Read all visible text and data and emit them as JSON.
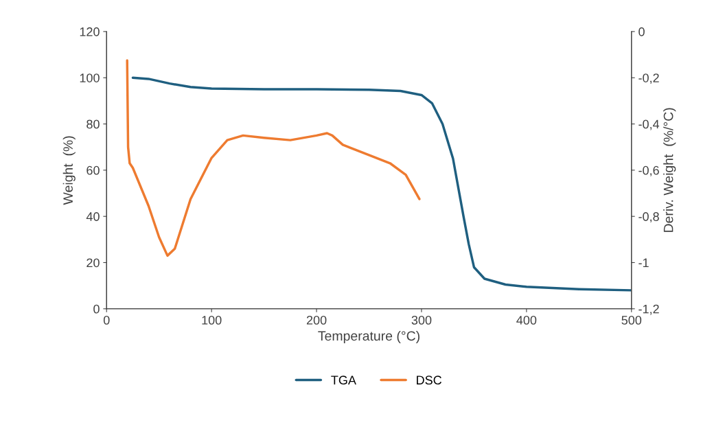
{
  "chart_data": {
    "type": "line",
    "xlabel": "Temperature (°C)",
    "ylabel": "Weight  (%)",
    "y2label": "Deriv. Weight  (%/°C)",
    "xlim": [
      0,
      500
    ],
    "xticks": [
      0,
      100,
      200,
      300,
      400,
      500
    ],
    "ylim": [
      0,
      120
    ],
    "yticks": [
      0,
      20,
      40,
      60,
      80,
      100,
      120
    ],
    "y2lim": [
      -1.2,
      0
    ],
    "y2ticks": [
      {
        "value": -1.2,
        "label": "-1,2"
      },
      {
        "value": -1,
        "label": "-1"
      },
      {
        "value": -0.8,
        "label": "-0,8"
      },
      {
        "value": -0.6,
        "label": "-0,6"
      },
      {
        "value": -0.4,
        "label": "-0,4"
      },
      {
        "value": -0.2,
        "label": "-0,2"
      },
      {
        "value": 0,
        "label": "0"
      }
    ],
    "grid": false,
    "legend": "bottom",
    "marker": "none",
    "line_style": "solid",
    "series": [
      {
        "name": "TGA",
        "color": "#1f5f80",
        "x": [
          25,
          40,
          60,
          80,
          100,
          150,
          200,
          250,
          280,
          300,
          310,
          320,
          330,
          340,
          345,
          350,
          360,
          380,
          400,
          450,
          500
        ],
        "values": [
          100,
          99.5,
          97.5,
          96,
          95.3,
          95,
          95,
          94.8,
          94.3,
          92.5,
          89,
          80,
          65,
          40,
          28,
          18,
          13,
          10.5,
          9.5,
          8.5,
          8
        ]
      },
      {
        "name": "DSC",
        "color": "#ee7b30",
        "axis": "y2",
        "x": [
          19.6,
          20.5,
          22,
          25,
          40,
          50,
          58,
          65,
          80,
          100,
          115,
          130,
          150,
          175,
          200,
          210,
          215,
          225,
          250,
          270,
          285,
          298
        ],
        "values": [
          -0.125,
          -0.5,
          -0.57,
          -0.59,
          -0.755,
          -0.89,
          -0.97,
          -0.94,
          -0.725,
          -0.547,
          -0.47,
          -0.45,
          -0.46,
          -0.47,
          -0.45,
          -0.44,
          -0.45,
          -0.49,
          -0.535,
          -0.57,
          -0.62,
          -0.725
        ]
      }
    ]
  }
}
